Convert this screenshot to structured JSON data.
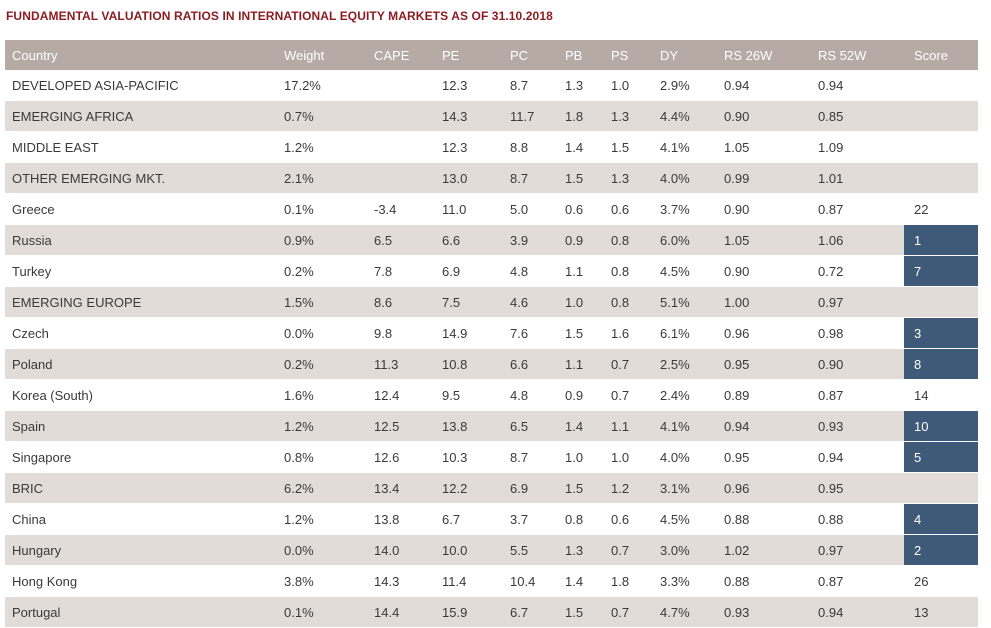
{
  "title": "FUNDAMENTAL VALUATION RATIOS IN INTERNATIONAL EQUITY MARKETS AS OF 31.10.2018",
  "columns": [
    "Country",
    "Weight",
    "CAPE",
    "PE",
    "PC",
    "PB",
    "PS",
    "DY",
    "RS 26W",
    "RS 52W",
    "Score"
  ],
  "rows": [
    {
      "country": "DEVELOPED ASIA-PACIFIC",
      "weight": "17.2%",
      "cape": "",
      "pe": "12.3",
      "pc": "8.7",
      "pb": "1.3",
      "ps": "1.0",
      "dy": "2.9%",
      "rs26": "0.94",
      "rs52": "0.94",
      "score": "",
      "highlight": false
    },
    {
      "country": "EMERGING AFRICA",
      "weight": "0.7%",
      "cape": "",
      "pe": "14.3",
      "pc": "11.7",
      "pb": "1.8",
      "ps": "1.3",
      "dy": "4.4%",
      "rs26": "0.90",
      "rs52": "0.85",
      "score": "",
      "highlight": false
    },
    {
      "country": "MIDDLE EAST",
      "weight": "1.2%",
      "cape": "",
      "pe": "12.3",
      "pc": "8.8",
      "pb": "1.4",
      "ps": "1.5",
      "dy": "4.1%",
      "rs26": "1.05",
      "rs52": "1.09",
      "score": "",
      "highlight": false
    },
    {
      "country": "OTHER EMERGING MKT.",
      "weight": "2.1%",
      "cape": "",
      "pe": "13.0",
      "pc": "8.7",
      "pb": "1.5",
      "ps": "1.3",
      "dy": "4.0%",
      "rs26": "0.99",
      "rs52": "1.01",
      "score": "",
      "highlight": false
    },
    {
      "country": "Greece",
      "weight": "0.1%",
      "cape": "-3.4",
      "pe": "11.0",
      "pc": "5.0",
      "pb": "0.6",
      "ps": "0.6",
      "dy": "3.7%",
      "rs26": "0.90",
      "rs52": "0.87",
      "score": "22",
      "highlight": false
    },
    {
      "country": "Russia",
      "weight": "0.9%",
      "cape": "6.5",
      "pe": "6.6",
      "pc": "3.9",
      "pb": "0.9",
      "ps": "0.8",
      "dy": "6.0%",
      "rs26": "1.05",
      "rs52": "1.06",
      "score": "1",
      "highlight": true
    },
    {
      "country": "Turkey",
      "weight": "0.2%",
      "cape": "7.8",
      "pe": "6.9",
      "pc": "4.8",
      "pb": "1.1",
      "ps": "0.8",
      "dy": "4.5%",
      "rs26": "0.90",
      "rs52": "0.72",
      "score": "7",
      "highlight": true
    },
    {
      "country": "EMERGING EUROPE",
      "weight": "1.5%",
      "cape": "8.6",
      "pe": "7.5",
      "pc": "4.6",
      "pb": "1.0",
      "ps": "0.8",
      "dy": "5.1%",
      "rs26": "1.00",
      "rs52": "0.97",
      "score": "",
      "highlight": false
    },
    {
      "country": "Czech",
      "weight": "0.0%",
      "cape": "9.8",
      "pe": "14.9",
      "pc": "7.6",
      "pb": "1.5",
      "ps": "1.6",
      "dy": "6.1%",
      "rs26": "0.96",
      "rs52": "0.98",
      "score": "3",
      "highlight": true
    },
    {
      "country": "Poland",
      "weight": "0.2%",
      "cape": "11.3",
      "pe": "10.8",
      "pc": "6.6",
      "pb": "1.1",
      "ps": "0.7",
      "dy": "2.5%",
      "rs26": "0.95",
      "rs52": "0.90",
      "score": "8",
      "highlight": true
    },
    {
      "country": "Korea (South)",
      "weight": "1.6%",
      "cape": "12.4",
      "pe": "9.5",
      "pc": "4.8",
      "pb": "0.9",
      "ps": "0.7",
      "dy": "2.4%",
      "rs26": "0.89",
      "rs52": "0.87",
      "score": "14",
      "highlight": false
    },
    {
      "country": "Spain",
      "weight": "1.2%",
      "cape": "12.5",
      "pe": "13.8",
      "pc": "6.5",
      "pb": "1.4",
      "ps": "1.1",
      "dy": "4.1%",
      "rs26": "0.94",
      "rs52": "0.93",
      "score": "10",
      "highlight": true
    },
    {
      "country": "Singapore",
      "weight": "0.8%",
      "cape": "12.6",
      "pe": "10.3",
      "pc": "8.7",
      "pb": "1.0",
      "ps": "1.0",
      "dy": "4.0%",
      "rs26": "0.95",
      "rs52": "0.94",
      "score": "5",
      "highlight": true
    },
    {
      "country": "BRIC",
      "weight": "6.2%",
      "cape": "13.4",
      "pe": "12.2",
      "pc": "6.9",
      "pb": "1.5",
      "ps": "1.2",
      "dy": "3.1%",
      "rs26": "0.96",
      "rs52": "0.95",
      "score": "",
      "highlight": false
    },
    {
      "country": "China",
      "weight": "1.2%",
      "cape": "13.8",
      "pe": "6.7",
      "pc": "3.7",
      "pb": "0.8",
      "ps": "0.6",
      "dy": "4.5%",
      "rs26": "0.88",
      "rs52": "0.88",
      "score": "4",
      "highlight": true
    },
    {
      "country": "Hungary",
      "weight": "0.0%",
      "cape": "14.0",
      "pe": "10.0",
      "pc": "5.5",
      "pb": "1.3",
      "ps": "0.7",
      "dy": "3.0%",
      "rs26": "1.02",
      "rs52": "0.97",
      "score": "2",
      "highlight": true
    },
    {
      "country": "Hong Kong",
      "weight": "3.8%",
      "cape": "14.3",
      "pe": "11.4",
      "pc": "10.4",
      "pb": "1.4",
      "ps": "1.8",
      "dy": "3.3%",
      "rs26": "0.88",
      "rs52": "0.87",
      "score": "26",
      "highlight": false
    },
    {
      "country": "Portugal",
      "weight": "0.1%",
      "cape": "14.4",
      "pe": "15.9",
      "pc": "6.7",
      "pb": "1.5",
      "ps": "0.7",
      "dy": "4.7%",
      "rs26": "0.93",
      "rs52": "0.94",
      "score": "13",
      "highlight": false
    }
  ],
  "colors": {
    "header_bg": "#b6aba4",
    "stripe": "#e2dcd8",
    "score_highlight": "#3e5a78",
    "title": "#8c1a1f"
  }
}
